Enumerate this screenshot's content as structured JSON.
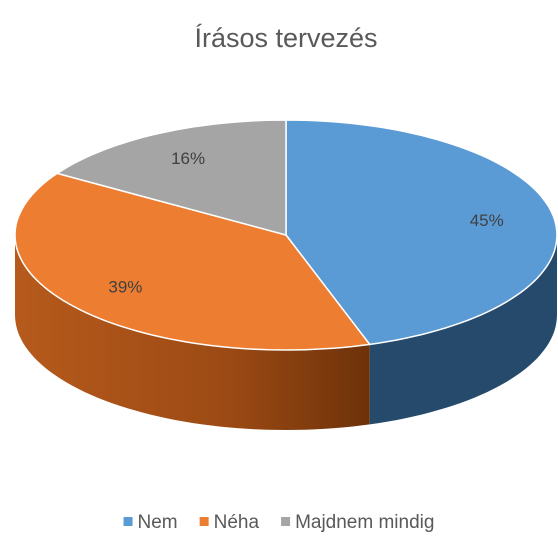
{
  "chart_data": {
    "type": "pie",
    "title": "Írásos tervezés",
    "categories": [
      "Nem",
      "Néha",
      "Majdnem mindig"
    ],
    "values": [
      45,
      39,
      16
    ],
    "value_labels": [
      "45%",
      "39%",
      "16%"
    ],
    "colors": [
      "#5b9bd5",
      "#ed7d31",
      "#a5a5a5"
    ],
    "legend": "bottom"
  }
}
